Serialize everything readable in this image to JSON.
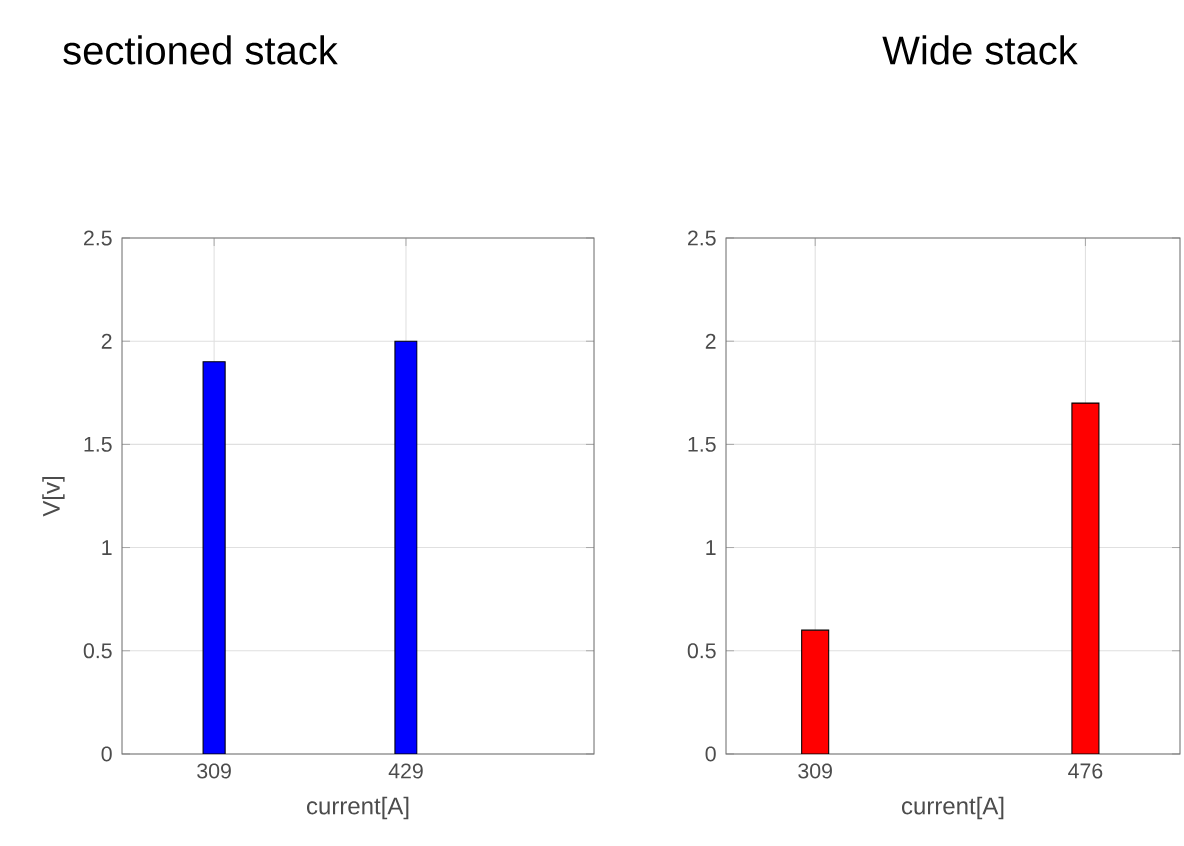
{
  "chart_data": [
    {
      "type": "bar",
      "title": "sectioned stack",
      "xlabel": "current[A]",
      "ylabel": "V[v]",
      "categories": [
        "309",
        "429"
      ],
      "values": [
        1.9,
        2.0
      ],
      "color": "#0000ff",
      "ylim": [
        0,
        2.5
      ],
      "yticks": [
        0,
        0.5,
        1,
        1.5,
        2,
        2.5
      ],
      "grid": true
    },
    {
      "type": "bar",
      "title": "Wide stack",
      "xlabel": "current[A]",
      "categories": [
        "309",
        "476"
      ],
      "values": [
        0.6,
        1.7
      ],
      "color": "#ff0000",
      "ylim": [
        0,
        2.5
      ],
      "yticks": [
        0,
        0.5,
        1,
        1.5,
        2,
        2.5
      ],
      "grid": true
    }
  ]
}
